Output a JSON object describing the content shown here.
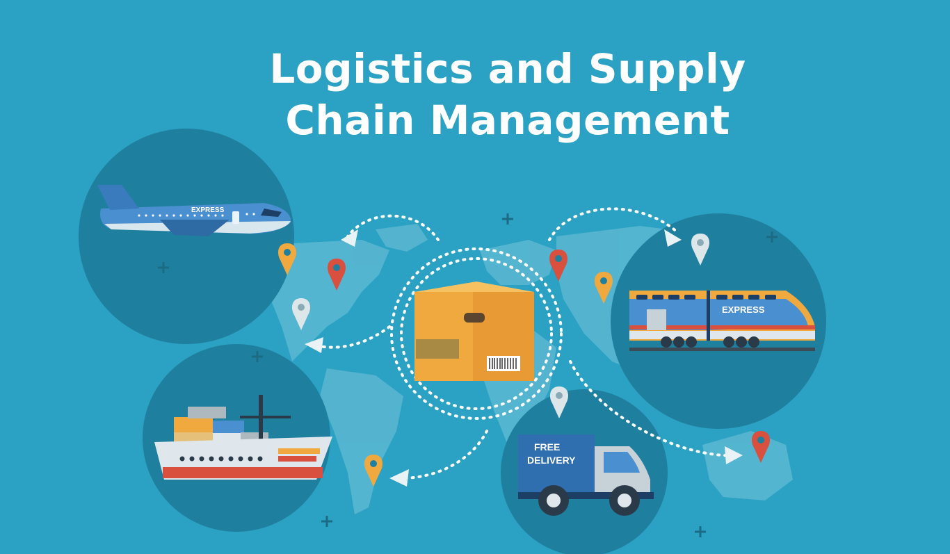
{
  "title": {
    "line1": "Logistics and Supply",
    "line2": "Chain Management"
  },
  "vehicles": {
    "plane_label": "EXPRESS",
    "train_label": "EXPRESS",
    "truck_label_line1": "FREE",
    "truck_label_line2": "DELIVERY"
  },
  "colors": {
    "background": "#2ba2c3",
    "circle": "#1f7f9f",
    "map": "#5cb8d3",
    "box": "#f0a93f",
    "pin_orange": "#f0a93f",
    "pin_red": "#d9503f",
    "pin_white": "#dde7ea"
  },
  "icons": [
    "airplane-icon",
    "train-icon",
    "cargo-ship-icon",
    "delivery-truck-icon",
    "package-box-icon",
    "location-pin-icon",
    "plus-sparkle-icon",
    "dotted-arrow-icon"
  ]
}
